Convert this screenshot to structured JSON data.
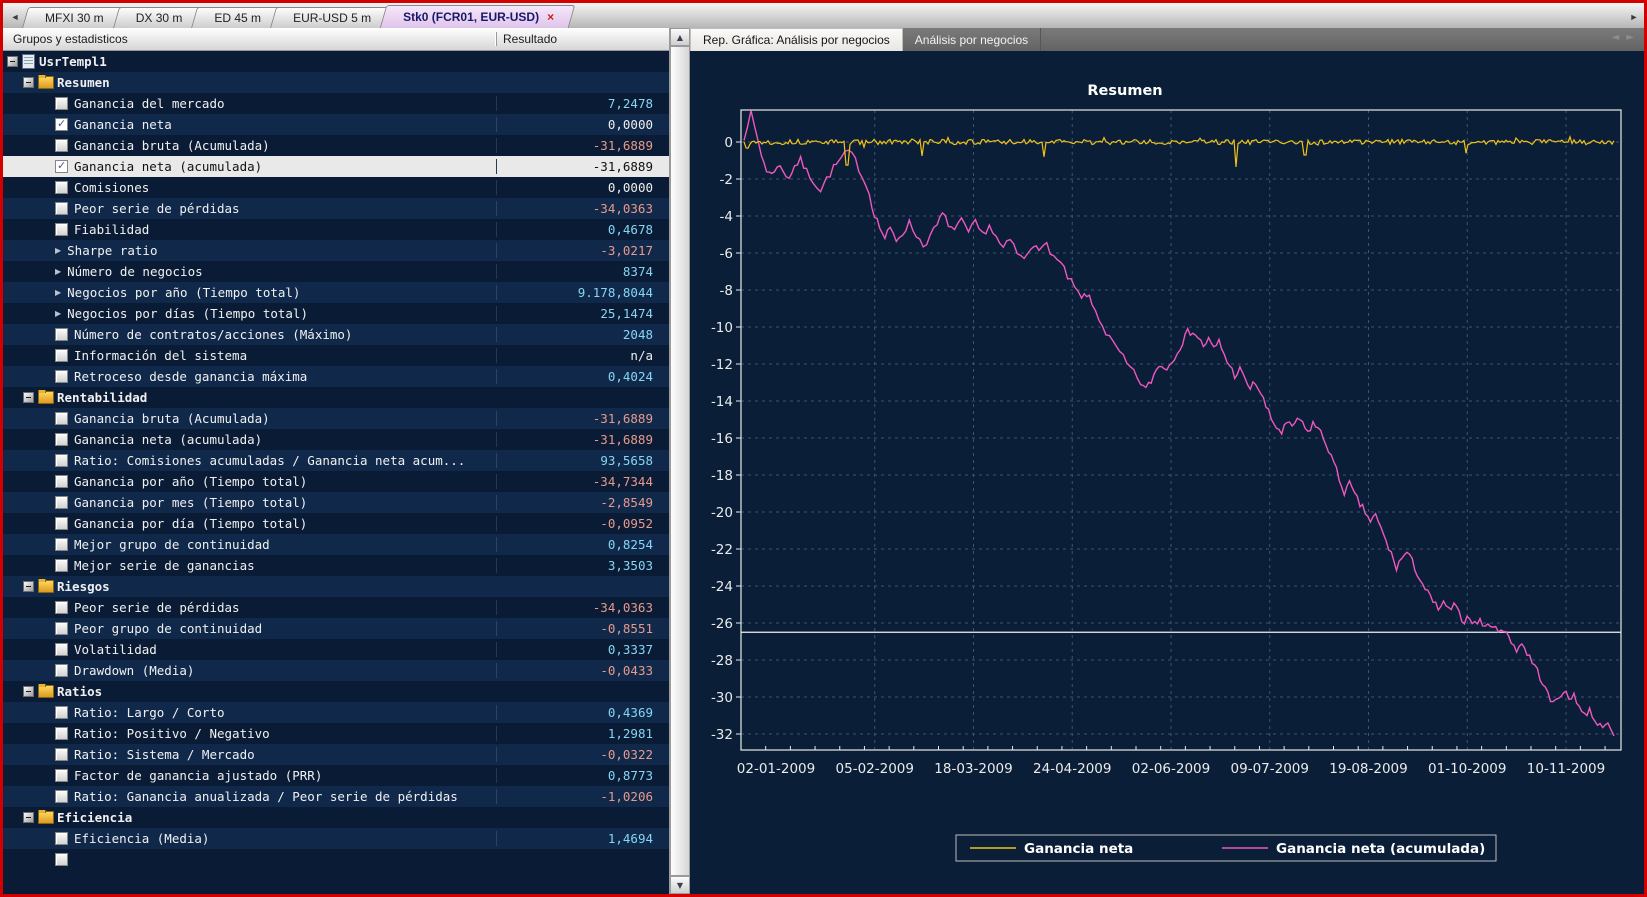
{
  "window_title": "Stk0 (FCR01, EUR-USD)",
  "colors": {
    "background": "#0a1e38",
    "window_border": "#d40000",
    "positive_value": "#86d5f3",
    "negative_value": "#e79a8b",
    "selection": "#e9e9e9",
    "active_tab": "#e7d0ee",
    "series_yellow": "#f2c218",
    "series_magenta": "#ee58bd",
    "grid": "#3d5570",
    "axis": "#ffffff"
  },
  "tab_strip": {
    "left_arrow": "◄",
    "right_arrow": "►",
    "tabs": [
      {
        "label": "MFXI 30 m",
        "active": false
      },
      {
        "label": "DX 30 m",
        "active": false
      },
      {
        "label": "ED 45 m",
        "active": false
      },
      {
        "label": "EUR-USD 5 m",
        "active": false
      },
      {
        "label": "Stk0 (FCR01, EUR-USD)",
        "active": true,
        "close_glyph": "×"
      }
    ]
  },
  "left_panel": {
    "header": {
      "col1": "Grupos y estadisticos",
      "col2": "Resultado"
    },
    "rows": [
      {
        "indent": 0,
        "icon": "doc",
        "control": "expander",
        "label": "UsrTempl1",
        "bold": true,
        "value": ""
      },
      {
        "indent": 1,
        "icon": "folder",
        "control": "expander",
        "label": "Resumen",
        "bold": true,
        "value": ""
      },
      {
        "indent": 2,
        "control": "checkbox",
        "label": "Ganancia del mercado",
        "value": "7,2478",
        "vclass": "pos"
      },
      {
        "indent": 2,
        "control": "checked",
        "label": "Ganancia neta",
        "value": "0,0000",
        "vclass": "neu"
      },
      {
        "indent": 2,
        "control": "checkbox",
        "label": "Ganancia bruta (Acumulada)",
        "value": "-31,6889",
        "vclass": "neg"
      },
      {
        "indent": 2,
        "control": "checked",
        "label": "Ganancia neta (acumulada)",
        "value": "-31,6889",
        "vclass": "neg",
        "selected": true
      },
      {
        "indent": 2,
        "control": "checkbox",
        "label": "Comisiones",
        "value": "0,0000",
        "vclass": "neu"
      },
      {
        "indent": 2,
        "control": "checkbox",
        "label": "Peor serie de pérdidas",
        "value": "-34,0363",
        "vclass": "neg"
      },
      {
        "indent": 2,
        "control": "checkbox",
        "label": "Fiabilidad",
        "value": "0,4678",
        "vclass": "pos"
      },
      {
        "indent": 2,
        "control": "arrow",
        "label": "Sharpe ratio",
        "value": "-3,0217",
        "vclass": "neg"
      },
      {
        "indent": 2,
        "control": "arrow",
        "label": "Número de negocios",
        "value": "8374",
        "vclass": "pos"
      },
      {
        "indent": 2,
        "control": "arrow",
        "label": "Negocios por año (Tiempo total)",
        "value": "9.178,8044",
        "vclass": "pos"
      },
      {
        "indent": 2,
        "control": "arrow",
        "label": "Negocios por días (Tiempo total)",
        "value": "25,1474",
        "vclass": "pos"
      },
      {
        "indent": 2,
        "control": "checkbox",
        "label": "Número de contratos/acciones (Máximo)",
        "value": "2048",
        "vclass": "pos"
      },
      {
        "indent": 2,
        "control": "checkbox",
        "label": "Información del sistema",
        "value": "n/a",
        "vclass": "neu"
      },
      {
        "indent": 2,
        "control": "checkbox",
        "label": "Retroceso desde ganancia máxima",
        "value": "0,4024",
        "vclass": "pos"
      },
      {
        "indent": 1,
        "icon": "folder",
        "control": "expander",
        "label": "Rentabilidad",
        "bold": true,
        "value": ""
      },
      {
        "indent": 2,
        "control": "checkbox",
        "label": "Ganancia bruta (Acumulada)",
        "value": "-31,6889",
        "vclass": "neg"
      },
      {
        "indent": 2,
        "control": "checkbox",
        "label": "Ganancia neta (acumulada)",
        "value": "-31,6889",
        "vclass": "neg"
      },
      {
        "indent": 2,
        "control": "checkbox",
        "label": "Ratio: Comisiones acumuladas / Ganancia neta acum...",
        "value": "93,5658",
        "vclass": "pos"
      },
      {
        "indent": 2,
        "control": "checkbox",
        "label": "Ganancia por año (Tiempo total)",
        "value": "-34,7344",
        "vclass": "neg"
      },
      {
        "indent": 2,
        "control": "checkbox",
        "label": "Ganancia por mes (Tiempo total)",
        "value": "-2,8549",
        "vclass": "neg"
      },
      {
        "indent": 2,
        "control": "checkbox",
        "label": "Ganancia por día (Tiempo total)",
        "value": "-0,0952",
        "vclass": "neg"
      },
      {
        "indent": 2,
        "control": "checkbox",
        "label": "Mejor grupo de continuidad",
        "value": "0,8254",
        "vclass": "pos"
      },
      {
        "indent": 2,
        "control": "checkbox",
        "label": "Mejor serie de ganancias",
        "value": "3,3503",
        "vclass": "pos"
      },
      {
        "indent": 1,
        "icon": "folder",
        "control": "expander",
        "label": "Riesgos",
        "bold": true,
        "value": ""
      },
      {
        "indent": 2,
        "control": "checkbox",
        "label": "Peor serie de pérdidas",
        "value": "-34,0363",
        "vclass": "neg"
      },
      {
        "indent": 2,
        "control": "checkbox",
        "label": "Peor grupo de continuidad",
        "value": "-0,8551",
        "vclass": "neg"
      },
      {
        "indent": 2,
        "control": "checkbox",
        "label": "Volatilidad",
        "value": "0,3337",
        "vclass": "pos"
      },
      {
        "indent": 2,
        "control": "checkbox",
        "label": "Drawdown (Media)",
        "value": "-0,0433",
        "vclass": "neg"
      },
      {
        "indent": 1,
        "icon": "folder",
        "control": "expander",
        "label": "Ratios",
        "bold": true,
        "value": ""
      },
      {
        "indent": 2,
        "control": "checkbox",
        "label": "Ratio: Largo / Corto",
        "value": "0,4369",
        "vclass": "pos"
      },
      {
        "indent": 2,
        "control": "checkbox",
        "label": "Ratio: Positivo / Negativo",
        "value": "1,2981",
        "vclass": "pos"
      },
      {
        "indent": 2,
        "control": "checkbox",
        "label": "Ratio: Sistema / Mercado",
        "value": "-0,0322",
        "vclass": "neg"
      },
      {
        "indent": 2,
        "control": "checkbox",
        "label": "Factor de ganancia ajustado (PRR)",
        "value": "0,8773",
        "vclass": "pos"
      },
      {
        "indent": 2,
        "control": "checkbox",
        "label": "Ratio: Ganancia anualizada / Peor serie de pérdidas",
        "value": "-1,0206",
        "vclass": "neg"
      },
      {
        "indent": 1,
        "icon": "folder",
        "control": "expander",
        "label": "Eficiencia",
        "bold": true,
        "value": ""
      },
      {
        "indent": 2,
        "control": "checkbox",
        "label": "Eficiencia (Media)",
        "value": "1,4694",
        "vclass": "pos"
      },
      {
        "indent": 2,
        "control": "checkbox",
        "label": "",
        "value": ""
      }
    ]
  },
  "right_panel": {
    "tabs": [
      {
        "label": "Rep. Gráfica: Análisis por negocios",
        "active": true
      },
      {
        "label": "Análisis por negocios",
        "active": false
      }
    ],
    "nav_arrows": "◄ ►"
  },
  "chart_data": {
    "type": "line",
    "title": "Resumen",
    "xlabel": "",
    "ylabel": "",
    "x_tick_labels": [
      "02-01-2009",
      "05-02-2009",
      "18-03-2009",
      "24-04-2009",
      "02-06-2009",
      "09-07-2009",
      "19-08-2009",
      "01-10-2009",
      "10-11-2009"
    ],
    "y_ticks": [
      0,
      -2,
      -4,
      -6,
      -8,
      -10,
      -12,
      -14,
      -16,
      -18,
      -20,
      -22,
      -24,
      -26,
      -28,
      -30,
      -32
    ],
    "ylim": [
      1.75,
      -32.9
    ],
    "grid": "dashed",
    "reference_line_y": -26.5,
    "legend_position": "bottom",
    "series": [
      {
        "name": "Ganancia neta",
        "color": "#f2c218",
        "baseline": 0,
        "noise_amplitude": 0.14,
        "spikes": [
          {
            "x": 0.118,
            "y": -1.25
          },
          {
            "x": 0.205,
            "y": -0.75
          },
          {
            "x": 0.345,
            "y": -0.8
          },
          {
            "x": 0.565,
            "y": -1.35
          },
          {
            "x": 0.645,
            "y": -0.7
          },
          {
            "x": 0.83,
            "y": -0.6
          }
        ]
      },
      {
        "name": "Ganancia neta (acumulada)",
        "color": "#ee58bd",
        "noise_amplitude": 0.22,
        "points": [
          [
            0.0,
            0.3
          ],
          [
            0.004,
            1.0
          ],
          [
            0.008,
            1.5
          ],
          [
            0.012,
            0.8
          ],
          [
            0.016,
            0.1
          ],
          [
            0.02,
            -0.7
          ],
          [
            0.026,
            -1.5
          ],
          [
            0.032,
            -1.8
          ],
          [
            0.038,
            -1.2
          ],
          [
            0.045,
            -1.6
          ],
          [
            0.052,
            -1.9
          ],
          [
            0.058,
            -1.3
          ],
          [
            0.065,
            -1.0
          ],
          [
            0.072,
            -1.6
          ],
          [
            0.08,
            -2.1
          ],
          [
            0.088,
            -2.6
          ],
          [
            0.095,
            -2.0
          ],
          [
            0.103,
            -1.4
          ],
          [
            0.112,
            -0.9
          ],
          [
            0.12,
            -0.5
          ],
          [
            0.128,
            -1.0
          ],
          [
            0.136,
            -1.8
          ],
          [
            0.144,
            -2.8
          ],
          [
            0.15,
            -3.9
          ],
          [
            0.156,
            -4.6
          ],
          [
            0.162,
            -5.2
          ],
          [
            0.168,
            -4.7
          ],
          [
            0.175,
            -5.3
          ],
          [
            0.182,
            -4.9
          ],
          [
            0.19,
            -4.4
          ],
          [
            0.198,
            -5.0
          ],
          [
            0.206,
            -5.6
          ],
          [
            0.214,
            -5.1
          ],
          [
            0.222,
            -4.5
          ],
          [
            0.228,
            -3.9
          ],
          [
            0.235,
            -4.4
          ],
          [
            0.242,
            -4.8
          ],
          [
            0.25,
            -4.3
          ],
          [
            0.258,
            -4.9
          ],
          [
            0.266,
            -4.4
          ],
          [
            0.274,
            -5.0
          ],
          [
            0.282,
            -4.5
          ],
          [
            0.29,
            -5.2
          ],
          [
            0.298,
            -5.8
          ],
          [
            0.306,
            -5.3
          ],
          [
            0.314,
            -6.0
          ],
          [
            0.322,
            -6.4
          ],
          [
            0.33,
            -5.7
          ],
          [
            0.336,
            -5.4
          ],
          [
            0.342,
            -5.9
          ],
          [
            0.348,
            -5.5
          ],
          [
            0.356,
            -6.2
          ],
          [
            0.364,
            -6.6
          ],
          [
            0.372,
            -7.3
          ],
          [
            0.38,
            -7.9
          ],
          [
            0.388,
            -8.5
          ],
          [
            0.394,
            -8.2
          ],
          [
            0.4,
            -8.8
          ],
          [
            0.408,
            -9.5
          ],
          [
            0.416,
            -10.3
          ],
          [
            0.424,
            -10.9
          ],
          [
            0.432,
            -11.4
          ],
          [
            0.44,
            -12.0
          ],
          [
            0.448,
            -12.5
          ],
          [
            0.456,
            -13.0
          ],
          [
            0.462,
            -13.4
          ],
          [
            0.468,
            -12.9
          ],
          [
            0.474,
            -12.3
          ],
          [
            0.48,
            -12.0
          ],
          [
            0.486,
            -12.3
          ],
          [
            0.492,
            -11.8
          ],
          [
            0.498,
            -11.3
          ],
          [
            0.504,
            -10.8
          ],
          [
            0.51,
            -10.3
          ],
          [
            0.516,
            -10.2
          ],
          [
            0.522,
            -10.6
          ],
          [
            0.528,
            -11.0
          ],
          [
            0.534,
            -10.7
          ],
          [
            0.54,
            -11.2
          ],
          [
            0.546,
            -10.8
          ],
          [
            0.552,
            -11.5
          ],
          [
            0.558,
            -12.1
          ],
          [
            0.564,
            -12.6
          ],
          [
            0.57,
            -12.3
          ],
          [
            0.576,
            -12.9
          ],
          [
            0.582,
            -13.3
          ],
          [
            0.588,
            -13.0
          ],
          [
            0.594,
            -13.6
          ],
          [
            0.6,
            -14.3
          ],
          [
            0.606,
            -15.0
          ],
          [
            0.612,
            -15.4
          ],
          [
            0.618,
            -15.7
          ],
          [
            0.624,
            -15.2
          ],
          [
            0.63,
            -15.5
          ],
          [
            0.636,
            -14.9
          ],
          [
            0.642,
            -15.3
          ],
          [
            0.648,
            -15.7
          ],
          [
            0.654,
            -15.2
          ],
          [
            0.66,
            -15.5
          ],
          [
            0.666,
            -16.0
          ],
          [
            0.672,
            -16.6
          ],
          [
            0.678,
            -17.4
          ],
          [
            0.684,
            -18.2
          ],
          [
            0.69,
            -18.9
          ],
          [
            0.696,
            -18.5
          ],
          [
            0.702,
            -19.1
          ],
          [
            0.708,
            -19.6
          ],
          [
            0.714,
            -20.0
          ],
          [
            0.72,
            -20.5
          ],
          [
            0.726,
            -20.2
          ],
          [
            0.732,
            -20.9
          ],
          [
            0.738,
            -21.6
          ],
          [
            0.744,
            -22.3
          ],
          [
            0.75,
            -23.0
          ],
          [
            0.756,
            -22.5
          ],
          [
            0.762,
            -22.2
          ],
          [
            0.768,
            -22.7
          ],
          [
            0.774,
            -23.3
          ],
          [
            0.78,
            -23.9
          ],
          [
            0.786,
            -24.4
          ],
          [
            0.792,
            -24.9
          ],
          [
            0.798,
            -25.2
          ],
          [
            0.804,
            -25.0
          ],
          [
            0.81,
            -25.3
          ],
          [
            0.816,
            -25.1
          ],
          [
            0.822,
            -25.5
          ],
          [
            0.828,
            -25.9
          ],
          [
            0.834,
            -25.6
          ],
          [
            0.84,
            -26.1
          ],
          [
            0.846,
            -25.8
          ],
          [
            0.852,
            -26.3
          ],
          [
            0.858,
            -26.0
          ],
          [
            0.864,
            -26.4
          ],
          [
            0.87,
            -26.2
          ],
          [
            0.876,
            -26.6
          ],
          [
            0.882,
            -27.0
          ],
          [
            0.888,
            -27.4
          ],
          [
            0.894,
            -27.1
          ],
          [
            0.9,
            -27.6
          ],
          [
            0.906,
            -28.1
          ],
          [
            0.912,
            -28.6
          ],
          [
            0.918,
            -29.2
          ],
          [
            0.924,
            -29.9
          ],
          [
            0.93,
            -30.4
          ],
          [
            0.936,
            -30.0
          ],
          [
            0.942,
            -29.6
          ],
          [
            0.948,
            -30.2
          ],
          [
            0.954,
            -29.8
          ],
          [
            0.96,
            -30.5
          ],
          [
            0.966,
            -31.0
          ],
          [
            0.972,
            -30.7
          ],
          [
            0.978,
            -31.2
          ],
          [
            0.984,
            -31.6
          ],
          [
            0.99,
            -31.3
          ],
          [
            0.996,
            -31.9
          ],
          [
            1.0,
            -32.1
          ]
        ]
      }
    ]
  }
}
